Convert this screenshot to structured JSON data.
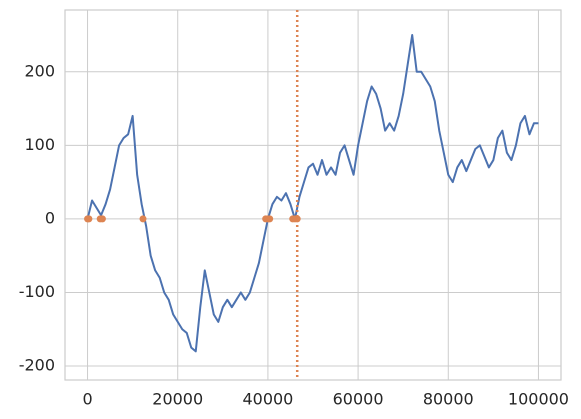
{
  "chart_data": {
    "type": "line",
    "xlim": [
      -5000,
      105000
    ],
    "ylim": [
      -219,
      284
    ],
    "xticks": [
      0,
      20000,
      40000,
      60000,
      80000,
      100000
    ],
    "yticks": [
      -200,
      -100,
      0,
      100,
      200
    ],
    "grid": true,
    "series": [
      {
        "type": "line",
        "color": "#4c72b0",
        "x": [
          0,
          1000,
          2000,
          3000,
          4000,
          5000,
          6000,
          7000,
          8000,
          9000,
          10000,
          11000,
          12000,
          13000,
          14000,
          15000,
          16000,
          17000,
          18000,
          19000,
          20000,
          21000,
          22000,
          23000,
          24000,
          25000,
          26000,
          27000,
          28000,
          29000,
          30000,
          31000,
          32000,
          33000,
          34000,
          35000,
          36000,
          37000,
          38000,
          39000,
          40000,
          41000,
          42000,
          43000,
          44000,
          45000,
          46000,
          47000,
          48000,
          49000,
          50000,
          51000,
          52000,
          53000,
          54000,
          55000,
          56000,
          57000,
          58000,
          59000,
          60000,
          61000,
          62000,
          63000,
          64000,
          65000,
          66000,
          67000,
          68000,
          69000,
          70000,
          71000,
          72000,
          73000,
          74000,
          75000,
          76000,
          77000,
          78000,
          79000,
          80000,
          81000,
          82000,
          83000,
          84000,
          85000,
          86000,
          87000,
          88000,
          89000,
          90000,
          91000,
          92000,
          93000,
          94000,
          95000,
          96000,
          97000,
          98000,
          99000,
          100000
        ],
        "values": [
          0,
          25,
          15,
          5,
          20,
          40,
          70,
          100,
          110,
          115,
          140,
          60,
          20,
          -10,
          -50,
          -70,
          -80,
          -100,
          -110,
          -130,
          -140,
          -150,
          -155,
          -175,
          -180,
          -120,
          -70,
          -100,
          -130,
          -140,
          -120,
          -110,
          -120,
          -110,
          -100,
          -110,
          -100,
          -80,
          -60,
          -30,
          0,
          20,
          30,
          25,
          35,
          20,
          0,
          30,
          50,
          70,
          75,
          60,
          80,
          60,
          70,
          60,
          90,
          100,
          80,
          60,
          100,
          130,
          160,
          180,
          170,
          150,
          120,
          130,
          120,
          140,
          170,
          210,
          250,
          200,
          200,
          190,
          180,
          160,
          120,
          90,
          60,
          50,
          70,
          80,
          65,
          80,
          95,
          100,
          85,
          70,
          80,
          110,
          120,
          90,
          80,
          100,
          130,
          140,
          115,
          130,
          130
        ]
      },
      {
        "type": "scatter",
        "color": "#dd8452",
        "x": [
          0,
          300,
          2800,
          3300,
          12300,
          39500,
          40000,
          40400,
          45500,
          46000,
          46500
        ],
        "values": [
          0,
          0,
          0,
          0,
          0,
          0,
          0,
          0,
          0,
          0,
          0
        ]
      }
    ],
    "vline": {
      "x": 46500,
      "color": "#dd8452"
    }
  }
}
